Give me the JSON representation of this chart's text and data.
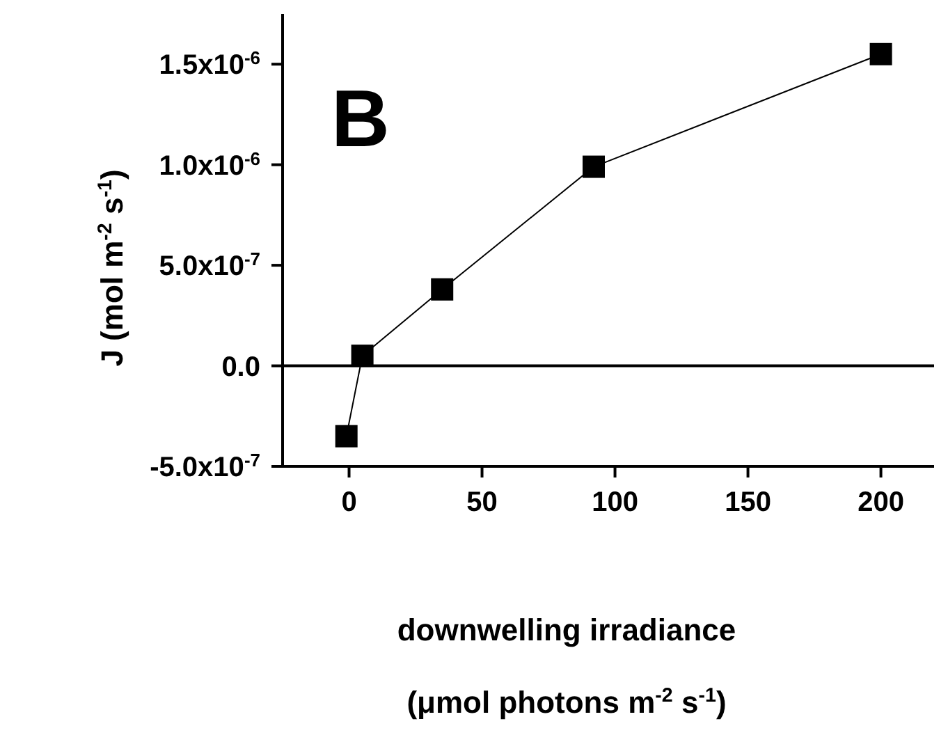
{
  "chart_data": {
    "type": "line",
    "xlabel": "downwelling irradiance\n(μmol photons m$^{-2}$ s$^{-1}$)",
    "ylabel": "J (mol m$^{-2}$ s$^{-1}$)",
    "annotations": [
      "B"
    ],
    "x": [
      -1,
      5,
      35,
      92,
      200
    ],
    "series": [
      {
        "color": "#000000",
        "values": [
          -3.5e-07,
          5e-08,
          3.8e-07,
          9.9e-07,
          1.55e-06
        ]
      }
    ],
    "xlim": [
      -25,
      220
    ],
    "xticks": [
      0,
      50,
      100,
      150,
      200
    ],
    "ylim": [
      -5e-07,
      1.75e-06
    ],
    "yticks": [
      {
        "value": -5e-07,
        "label": "-5.0x10$^{-7}$"
      },
      {
        "value": 0,
        "label": "0.0"
      },
      {
        "value": 5e-07,
        "label": "5.0x10$^{-7}$"
      },
      {
        "value": 1e-06,
        "label": "1.0x10$^{-6}$"
      },
      {
        "value": 1.5e-06,
        "label": "1.5x10$^{-6}$"
      }
    ],
    "ref_lines": [
      {
        "axis": "y",
        "value": 0,
        "color": "#000000"
      }
    ],
    "grid": false,
    "legend": false,
    "marker": "square",
    "line_style": "solid"
  }
}
